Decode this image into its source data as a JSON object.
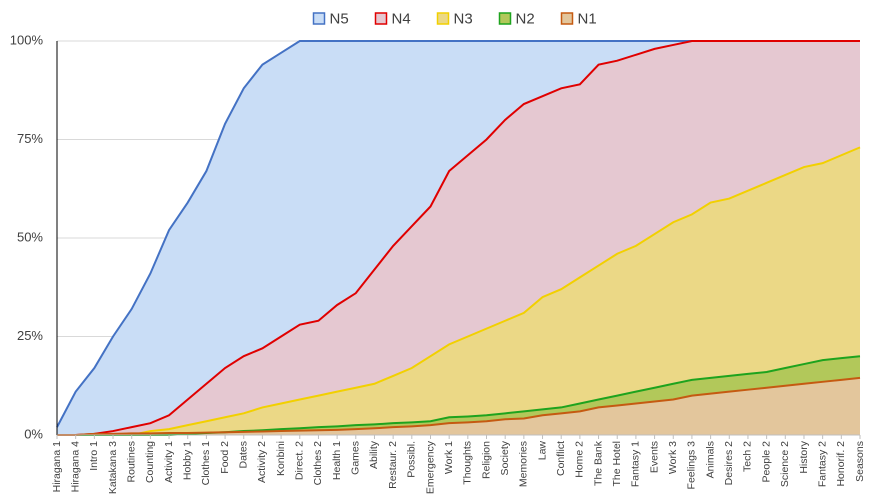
{
  "chart_data": {
    "type": "area",
    "categories": [
      "Hiragana 1",
      "Hiragana 4",
      "Intro 1",
      "Katakana 3",
      "Routines",
      "Counting",
      "Activity 1",
      "Hobby 1",
      "Clothes 1",
      "Food 2",
      "Dates",
      "Activity 2",
      "Konbini",
      "Direct. 2",
      "Clothes 2",
      "Health 1",
      "Games",
      "Ability",
      "Restaur. 2",
      "Possibl.",
      "Emergency",
      "Work 1",
      "Thoughts",
      "Religion",
      "Society",
      "Memories",
      "Law",
      "Conflict",
      "Home 2",
      "The Bank",
      "The Hotel",
      "Fantasy 1",
      "Events",
      "Work 3",
      "Feelings 3",
      "Animals",
      "Desires 2",
      "Tech 2",
      "People 2",
      "Science 2",
      "History",
      "Fantasy 2",
      "Honorif. 2",
      "Seasons"
    ],
    "series": [
      {
        "name": "N5",
        "color": "#4472c4",
        "fill": "#c9ddf6",
        "values": [
          2,
          11,
          17,
          25,
          32,
          41,
          52,
          59,
          67,
          79,
          88,
          94,
          97,
          100,
          100,
          100,
          100,
          100,
          100,
          100,
          100,
          100,
          100,
          100,
          100,
          100,
          100,
          100,
          100,
          100,
          100,
          100,
          100,
          100,
          100,
          100,
          100,
          100,
          100,
          100,
          100,
          100,
          100,
          100
        ]
      },
      {
        "name": "N4",
        "color": "#e00000",
        "fill": "#e5c8d1",
        "values": [
          0,
          0,
          0.3,
          1,
          2,
          3,
          5,
          9,
          13,
          17,
          20,
          22,
          25,
          28,
          29,
          33,
          36,
          42,
          48,
          53,
          58,
          67,
          71,
          75,
          80,
          84,
          86,
          88,
          89,
          94,
          95,
          96.5,
          98,
          99,
          100,
          100,
          100,
          100,
          100,
          100,
          100,
          100,
          100,
          100
        ]
      },
      {
        "name": "N3",
        "color": "#f2d000",
        "fill": "#ebd886",
        "values": [
          0,
          0,
          0,
          0,
          0,
          1,
          1.5,
          2.5,
          3.5,
          4.5,
          5.5,
          7,
          8,
          9,
          10,
          11,
          12,
          13,
          15,
          17,
          20,
          23,
          25,
          27,
          29,
          31,
          35,
          37,
          40,
          43,
          46,
          48,
          51,
          54,
          56,
          59,
          60,
          62,
          64,
          66,
          68,
          69,
          71,
          73
        ]
      },
      {
        "name": "N2",
        "color": "#1ea31e",
        "fill": "#b2c85a",
        "values": [
          0,
          0,
          0,
          0,
          0,
          0,
          0,
          0.3,
          0.5,
          0.7,
          1,
          1.2,
          1.5,
          1.7,
          2,
          2.2,
          2.5,
          2.7,
          3,
          3.2,
          3.5,
          4.5,
          4.7,
          5,
          5.5,
          6,
          6.5,
          7,
          8,
          9,
          10,
          11,
          12,
          13,
          14,
          14.5,
          15,
          15.5,
          16,
          17,
          18,
          19,
          19.5,
          20
        ]
      },
      {
        "name": "N1",
        "color": "#c55a11",
        "fill": "#e3c69c",
        "values": [
          0,
          0,
          0.3,
          0.3,
          0.4,
          0.4,
          0.5,
          0.5,
          0.6,
          0.7,
          0.8,
          0.9,
          1,
          1.1,
          1.2,
          1.3,
          1.5,
          1.7,
          2,
          2.2,
          2.5,
          3,
          3.2,
          3.5,
          4,
          4.2,
          5,
          5.5,
          6,
          7,
          7.5,
          8,
          8.5,
          9,
          10,
          10.5,
          11,
          11.5,
          12,
          12.5,
          13,
          13.5,
          14,
          14.5
        ]
      }
    ],
    "ylim": [
      0,
      100
    ],
    "yticks": [
      {
        "value": 0,
        "label": "0%"
      },
      {
        "value": 25,
        "label": "25%"
      },
      {
        "value": 50,
        "label": "50%"
      },
      {
        "value": 75,
        "label": "75%"
      },
      {
        "value": 100,
        "label": "100%"
      }
    ],
    "grid": true,
    "legend": "top"
  }
}
